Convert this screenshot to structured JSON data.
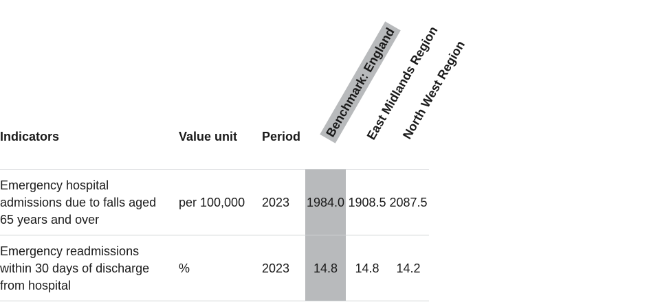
{
  "table": {
    "headers": {
      "indicators": "Indicators",
      "value_unit": "Value unit",
      "period": "Period",
      "benchmark": "Benchmark: England",
      "region_1": "East Midlands Region",
      "region_2": "North West Region"
    },
    "rows": [
      {
        "indicator": "Emergency hospital admissions due to falls aged 65 years and over",
        "unit": "per 100,000",
        "period": "2023",
        "benchmark": "1984.0",
        "region_1": "1908.5",
        "region_2": "2087.5"
      },
      {
        "indicator": "Emergency readmissions within 30 days of discharge from hospital",
        "unit": "%",
        "period": "2023",
        "benchmark": "14.8",
        "region_1": "14.8",
        "region_2": "14.2"
      }
    ]
  },
  "colors": {
    "benchmark_shade": "#b8babc",
    "divider": "#cfd2d4",
    "text": "#1a1a1a"
  }
}
